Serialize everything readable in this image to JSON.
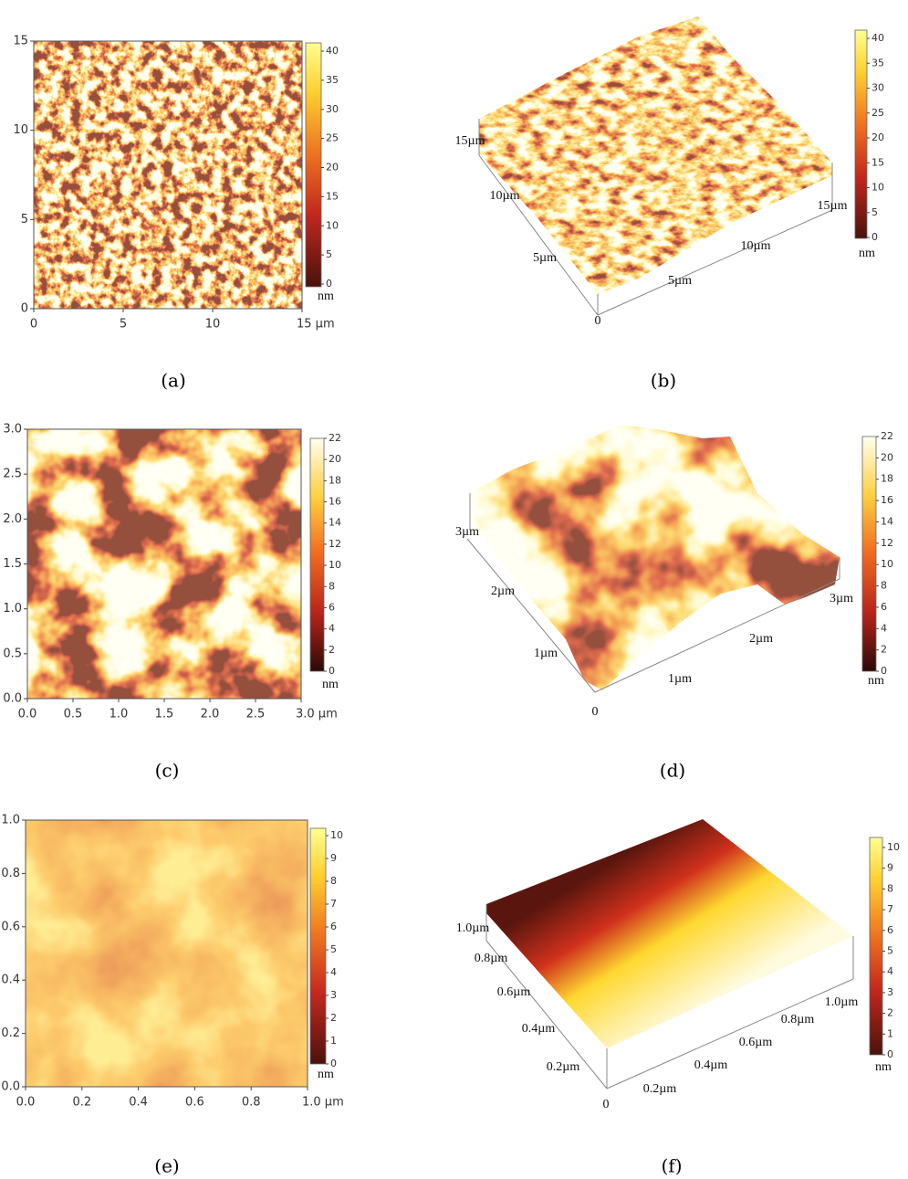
{
  "panels": [
    {
      "caption": "(a)",
      "yticks": [
        "15",
        "10",
        "5",
        "0"
      ],
      "xticks": [
        "0",
        "5",
        "10",
        "15 µm"
      ],
      "colorbar": {
        "ticks": [
          "40",
          "35",
          "30",
          "25",
          "20",
          "15",
          "10",
          "5",
          "0"
        ],
        "unit": "nm"
      }
    },
    {
      "caption": "(b)",
      "axis_labels": [
        "15µm",
        "10µm",
        "5µm",
        "0",
        "5µm",
        "10µm",
        "15µm"
      ],
      "colorbar": {
        "ticks": [
          "40",
          "35",
          "30",
          "25",
          "20",
          "15",
          "10",
          "5",
          "0"
        ],
        "unit": "nm"
      }
    },
    {
      "caption": "(c)",
      "yticks": [
        "3.0",
        "2.5",
        "2.0",
        "1.5",
        "1.0",
        "0.5",
        "0.0"
      ],
      "xticks": [
        "0.0",
        "0.5",
        "1.0",
        "1.5",
        "2.0",
        "2.5",
        "3.0 µm"
      ],
      "colorbar": {
        "ticks": [
          "22",
          "20",
          "18",
          "16",
          "14",
          "12",
          "10",
          "8",
          "6",
          "4",
          "2",
          "0"
        ],
        "unit": "nm"
      }
    },
    {
      "caption": "(d)",
      "axis_labels": [
        "3µm",
        "2µm",
        "1µm",
        "0",
        "1µm",
        "2µm",
        "3µm"
      ],
      "colorbar": {
        "ticks": [
          "22",
          "20",
          "18",
          "16",
          "14",
          "12",
          "10",
          "8",
          "6",
          "4",
          "2",
          "0"
        ],
        "unit": "nm"
      }
    },
    {
      "caption": "(e)",
      "yticks": [
        "1.0",
        "0.8",
        "0.6",
        "0.4",
        "0.2",
        "0.0"
      ],
      "xticks": [
        "0.0",
        "0.2",
        "0.4",
        "0.6",
        "0.8",
        "1.0 µm"
      ],
      "colorbar": {
        "ticks": [
          "10",
          "9",
          "8",
          "7",
          "6",
          "5",
          "4",
          "3",
          "2",
          "1",
          "0"
        ],
        "unit": "nm"
      }
    },
    {
      "caption": "(f)",
      "axis_labels": [
        "1.0µm",
        "0.8µm",
        "0.6µm",
        "0.4µm",
        "0.2µm",
        "0",
        "0.2µm",
        "0.4µm",
        "0.6µm",
        "0.8µm",
        "1.0µm"
      ],
      "colorbar": {
        "ticks": [
          "10",
          "9",
          "8",
          "7",
          "6",
          "5",
          "4",
          "3",
          "2",
          "1",
          "0"
        ],
        "unit": "nm"
      }
    }
  ]
}
